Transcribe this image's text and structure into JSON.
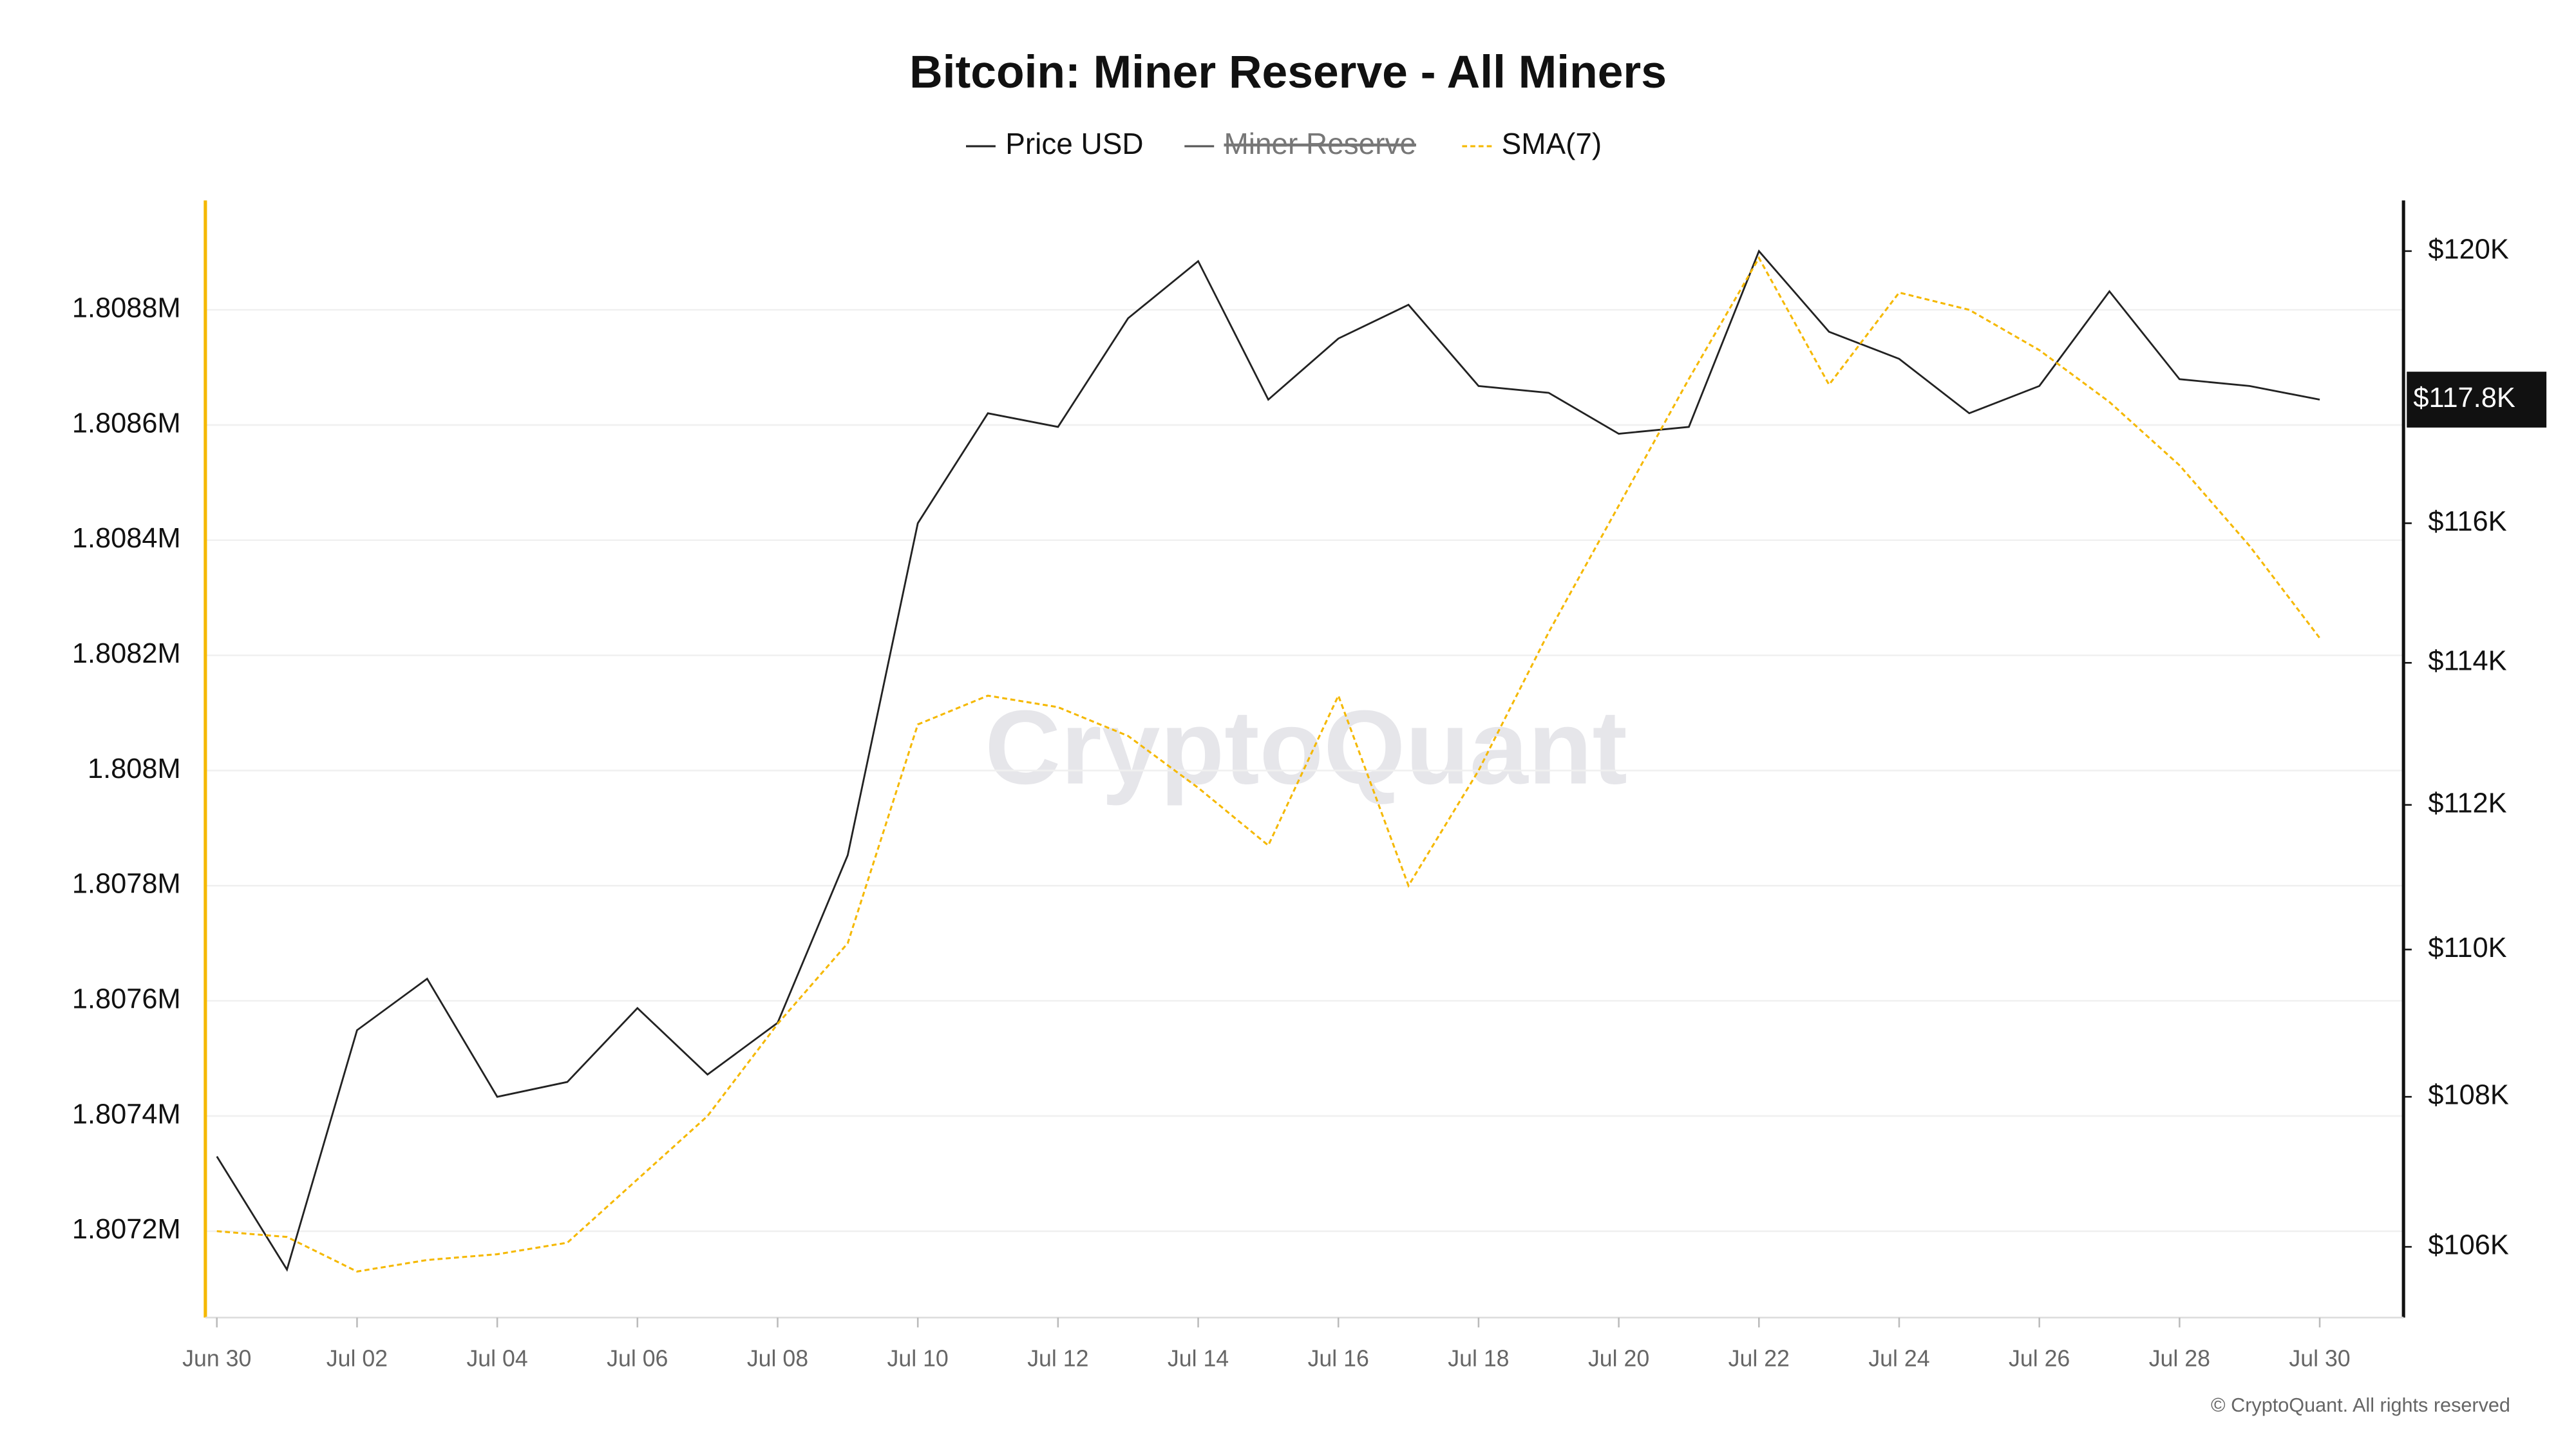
{
  "chart_data": {
    "type": "line",
    "title": "Bitcoin: Miner Reserve - All Miners",
    "categories": [
      "Jun 30",
      null,
      "Jul 02",
      null,
      "Jul 04",
      null,
      "Jul 06",
      null,
      "Jul 08",
      null,
      "Jul 10",
      null,
      "Jul 12",
      null,
      "Jul 14",
      null,
      "Jul 16",
      null,
      "Jul 18",
      null,
      "Jul 20",
      null,
      "Jul 22",
      null,
      "Jul 24",
      null,
      "Jul 26",
      null,
      "Jul 28",
      null,
      "Jul 30"
    ],
    "series": [
      {
        "name": "Price USD",
        "color": "#222222",
        "axis": "y2",
        "values": [
          107200,
          105700,
          108900,
          109600,
          108000,
          108200,
          109200,
          108300,
          109000,
          111300,
          116000,
          117600,
          117400,
          119000,
          119850,
          117800,
          118700,
          119200,
          118000,
          117900,
          117300,
          117400,
          120000,
          118800,
          118400,
          117600,
          118000,
          119400,
          118100,
          118000,
          117800
        ]
      },
      {
        "name": "Miner Reserve",
        "color": "#555555",
        "visible": false
      },
      {
        "name": "SMA(7)",
        "color": "#f5b800",
        "dashed": true,
        "values": [
          1.8072,
          1.80719,
          1.80713,
          1.80715,
          1.80716,
          1.80718,
          1.80729,
          1.8074,
          1.80756,
          1.8077,
          1.80808,
          1.80813,
          1.80811,
          1.80806,
          1.80797,
          1.80787,
          1.80813,
          1.8078,
          1.808,
          1.80824,
          1.80846,
          1.80868,
          1.80889,
          1.80867,
          1.80883,
          1.8088,
          1.80873,
          1.80864,
          1.80853,
          1.80839,
          1.80823
        ]
      }
    ],
    "ylim": [
      1.80705,
      1.80899
    ],
    "yticks": [
      {
        "value": 1.8072,
        "label": "1.8072M"
      },
      {
        "value": 1.8074,
        "label": "1.8074M"
      },
      {
        "value": 1.8076,
        "label": "1.8076M"
      },
      {
        "value": 1.8078,
        "label": "1.8078M"
      },
      {
        "value": 1.808,
        "label": "1.808M"
      },
      {
        "value": 1.8082,
        "label": "1.8082M"
      },
      {
        "value": 1.8084,
        "label": "1.8084M"
      },
      {
        "value": 1.8086,
        "label": "1.8086M"
      },
      {
        "value": 1.8088,
        "label": "1.8088M"
      }
    ],
    "y2lim": [
      105070,
      120760
    ],
    "y2_log": true,
    "y2ticks": [
      {
        "value": 106000,
        "label": "$106K"
      },
      {
        "value": 108000,
        "label": "$108K"
      },
      {
        "value": 110000,
        "label": "$110K"
      },
      {
        "value": 112000,
        "label": "$112K"
      },
      {
        "value": 114000,
        "label": "$114K"
      },
      {
        "value": 116000,
        "label": "$116K"
      },
      {
        "value": 120000,
        "label": "$120K"
      }
    ],
    "current_value": {
      "value": 117800,
      "label": "$117.8K"
    },
    "grid": true,
    "watermark": "CryptoQuant",
    "footer": "© CryptoQuant. All rights reserved"
  }
}
